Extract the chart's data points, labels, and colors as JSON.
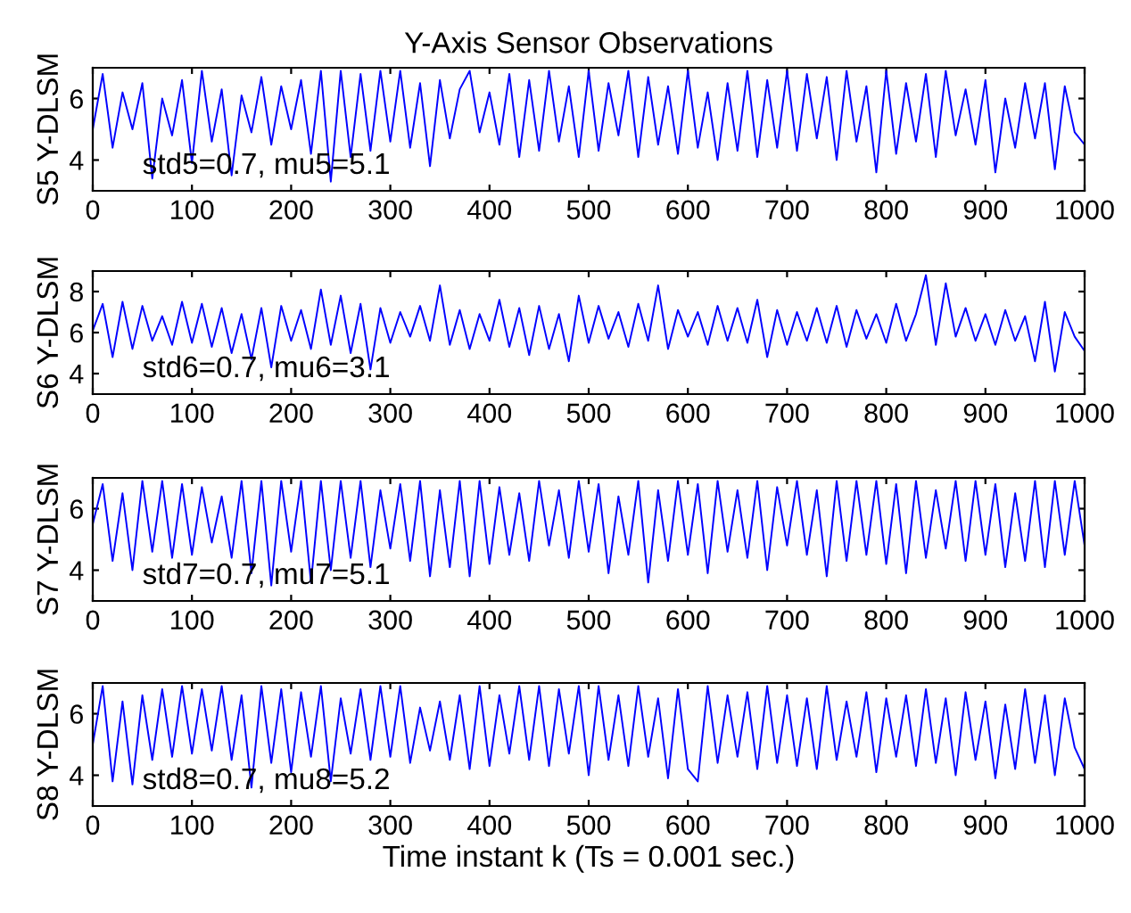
{
  "chart_data": [
    {
      "type": "line",
      "title": "Y-Axis Sensor Observations",
      "ylabel": "S5 Y-DLSM",
      "annotations": [
        "std5=0.7, mu5=5.1"
      ],
      "xlim": [
        0,
        1000
      ],
      "xticks": [
        0,
        100,
        200,
        300,
        400,
        500,
        600,
        700,
        800,
        900,
        1000
      ],
      "ylim": [
        3,
        7
      ],
      "yticks": [
        4,
        6
      ],
      "grid": false,
      "legend": false,
      "x": [
        0,
        10,
        20,
        30,
        40,
        50,
        60,
        70,
        80,
        90,
        100,
        110,
        120,
        130,
        140,
        150,
        160,
        170,
        180,
        190,
        200,
        210,
        220,
        230,
        240,
        250,
        260,
        270,
        280,
        290,
        300,
        310,
        320,
        330,
        340,
        350,
        360,
        370,
        380,
        390,
        400,
        410,
        420,
        430,
        440,
        450,
        460,
        470,
        480,
        490,
        500,
        510,
        520,
        530,
        540,
        550,
        560,
        570,
        580,
        590,
        600,
        610,
        620,
        630,
        640,
        650,
        660,
        670,
        680,
        690,
        700,
        710,
        720,
        730,
        740,
        750,
        760,
        770,
        780,
        790,
        800,
        810,
        820,
        830,
        840,
        850,
        860,
        870,
        880,
        890,
        900,
        910,
        920,
        930,
        940,
        950,
        960,
        970,
        980,
        990,
        1000
      ],
      "series": [
        {
          "color": "#0000ff",
          "values": [
            5.0,
            6.8,
            4.4,
            6.2,
            5.0,
            6.5,
            3.4,
            6.0,
            4.8,
            6.6,
            3.9,
            6.9,
            4.6,
            6.3,
            3.5,
            6.1,
            4.9,
            6.7,
            4.5,
            6.4,
            5.0,
            6.6,
            4.2,
            6.9,
            3.3,
            6.9,
            4.1,
            6.8,
            4.3,
            6.9,
            4.6,
            6.9,
            4.4,
            6.5,
            3.8,
            6.6,
            4.7,
            6.3,
            6.9,
            4.9,
            6.2,
            4.5,
            6.8,
            4.1,
            6.6,
            4.3,
            6.9,
            4.6,
            6.4,
            4.1,
            6.9,
            4.3,
            6.5,
            4.8,
            6.9,
            4.1,
            6.7,
            4.5,
            6.4,
            4.2,
            6.9,
            4.4,
            6.2,
            4.0,
            6.5,
            4.3,
            6.9,
            4.1,
            6.6,
            4.4,
            6.9,
            4.3,
            6.8,
            4.7,
            6.7,
            4.0,
            6.9,
            4.6,
            6.4,
            3.6,
            6.9,
            4.2,
            6.5,
            4.6,
            6.8,
            4.1,
            6.9,
            4.8,
            6.3,
            4.5,
            6.6,
            3.6,
            6.0,
            4.4,
            6.5,
            4.7,
            6.5,
            3.7,
            6.4,
            4.9,
            4.5
          ]
        }
      ]
    },
    {
      "type": "line",
      "ylabel": "S6 Y-DLSM",
      "annotations": [
        "std6=0.7, mu6=3.1"
      ],
      "xlim": [
        0,
        1000
      ],
      "xticks": [
        0,
        100,
        200,
        300,
        400,
        500,
        600,
        700,
        800,
        900,
        1000
      ],
      "ylim": [
        3,
        9
      ],
      "yticks": [
        4,
        6,
        8
      ],
      "grid": false,
      "legend": false,
      "x": [
        0,
        10,
        20,
        30,
        40,
        50,
        60,
        70,
        80,
        90,
        100,
        110,
        120,
        130,
        140,
        150,
        160,
        170,
        180,
        190,
        200,
        210,
        220,
        230,
        240,
        250,
        260,
        270,
        280,
        290,
        300,
        310,
        320,
        330,
        340,
        350,
        360,
        370,
        380,
        390,
        400,
        410,
        420,
        430,
        440,
        450,
        460,
        470,
        480,
        490,
        500,
        510,
        520,
        530,
        540,
        550,
        560,
        570,
        580,
        590,
        600,
        610,
        620,
        630,
        640,
        650,
        660,
        670,
        680,
        690,
        700,
        710,
        720,
        730,
        740,
        750,
        760,
        770,
        780,
        790,
        800,
        810,
        820,
        830,
        840,
        850,
        860,
        870,
        880,
        890,
        900,
        910,
        920,
        930,
        940,
        950,
        960,
        970,
        980,
        990,
        1000
      ],
      "series": [
        {
          "color": "#0000ff",
          "values": [
            6.1,
            7.4,
            4.8,
            7.5,
            5.2,
            7.3,
            5.6,
            6.8,
            5.4,
            7.5,
            5.5,
            7.4,
            5.3,
            7.2,
            5.0,
            6.9,
            4.7,
            7.2,
            4.3,
            7.3,
            5.6,
            7.1,
            5.2,
            8.1,
            5.4,
            7.8,
            5.0,
            7.4,
            4.2,
            7.2,
            5.5,
            7.0,
            5.8,
            7.3,
            5.6,
            8.3,
            5.4,
            7.1,
            5.2,
            6.9,
            5.6,
            7.6,
            5.3,
            7.2,
            4.9,
            7.3,
            5.2,
            6.9,
            4.6,
            7.8,
            5.5,
            7.3,
            5.7,
            7.0,
            5.3,
            7.4,
            5.6,
            8.3,
            5.2,
            7.1,
            5.8,
            7.0,
            5.4,
            7.3,
            5.6,
            7.2,
            5.5,
            7.6,
            4.8,
            7.1,
            5.4,
            7.0,
            5.6,
            7.2,
            5.5,
            7.3,
            5.3,
            7.1,
            5.7,
            6.9,
            5.5,
            7.4,
            5.6,
            6.9,
            8.8,
            5.4,
            8.4,
            5.8,
            7.2,
            5.6,
            6.9,
            5.4,
            7.1,
            5.6,
            6.8,
            4.6,
            7.5,
            4.1,
            7.0,
            5.8,
            5.1
          ]
        }
      ]
    },
    {
      "type": "line",
      "ylabel": "S7 Y-DLSM",
      "annotations": [
        "std7=0.7, mu7=5.1"
      ],
      "xlim": [
        0,
        1000
      ],
      "xticks": [
        0,
        100,
        200,
        300,
        400,
        500,
        600,
        700,
        800,
        900,
        1000
      ],
      "ylim": [
        3,
        7
      ],
      "yticks": [
        4,
        6
      ],
      "grid": false,
      "legend": false,
      "x": [
        0,
        10,
        20,
        30,
        40,
        50,
        60,
        70,
        80,
        90,
        100,
        110,
        120,
        130,
        140,
        150,
        160,
        170,
        180,
        190,
        200,
        210,
        220,
        230,
        240,
        250,
        260,
        270,
        280,
        290,
        300,
        310,
        320,
        330,
        340,
        350,
        360,
        370,
        380,
        390,
        400,
        410,
        420,
        430,
        440,
        450,
        460,
        470,
        480,
        490,
        500,
        510,
        520,
        530,
        540,
        550,
        560,
        570,
        580,
        590,
        600,
        610,
        620,
        630,
        640,
        650,
        660,
        670,
        680,
        690,
        700,
        710,
        720,
        730,
        740,
        750,
        760,
        770,
        780,
        790,
        800,
        810,
        820,
        830,
        840,
        850,
        860,
        870,
        880,
        890,
        900,
        910,
        920,
        930,
        940,
        950,
        960,
        970,
        980,
        990,
        1000
      ],
      "series": [
        {
          "color": "#0000ff",
          "values": [
            5.5,
            6.8,
            4.3,
            6.5,
            4.0,
            6.9,
            4.6,
            6.9,
            4.4,
            6.8,
            4.5,
            6.7,
            4.9,
            6.4,
            4.4,
            6.9,
            3.9,
            6.9,
            3.5,
            6.9,
            4.6,
            6.9,
            3.6,
            6.9,
            4.0,
            6.9,
            4.4,
            6.9,
            4.1,
            6.6,
            4.7,
            6.8,
            4.3,
            6.9,
            3.8,
            6.6,
            4.1,
            6.9,
            3.8,
            6.9,
            4.2,
            6.7,
            4.5,
            6.5,
            4.3,
            6.9,
            4.8,
            6.6,
            4.4,
            6.9,
            4.6,
            6.8,
            3.9,
            6.4,
            4.5,
            6.9,
            3.6,
            6.6,
            4.3,
            6.9,
            4.5,
            6.8,
            3.9,
            6.9,
            4.6,
            6.6,
            4.4,
            6.9,
            4.0,
            6.7,
            4.8,
            6.9,
            4.5,
            6.6,
            3.8,
            6.9,
            4.3,
            6.9,
            4.5,
            6.9,
            4.2,
            6.8,
            3.9,
            6.9,
            4.4,
            6.6,
            4.7,
            6.9,
            4.3,
            6.9,
            4.5,
            6.8,
            4.1,
            6.5,
            4.3,
            6.9,
            4.1,
            6.9,
            4.5,
            6.9,
            4.8
          ]
        }
      ]
    },
    {
      "type": "line",
      "ylabel": "S8 Y-DLSM",
      "xlabel": "Time instant k (Ts = 0.001 sec.)",
      "annotations": [
        "std8=0.7, mu8=5.2"
      ],
      "xlim": [
        0,
        1000
      ],
      "xticks": [
        0,
        100,
        200,
        300,
        400,
        500,
        600,
        700,
        800,
        900,
        1000
      ],
      "ylim": [
        3,
        7
      ],
      "yticks": [
        4,
        6
      ],
      "grid": false,
      "legend": false,
      "x": [
        0,
        10,
        20,
        30,
        40,
        50,
        60,
        70,
        80,
        90,
        100,
        110,
        120,
        130,
        140,
        150,
        160,
        170,
        180,
        190,
        200,
        210,
        220,
        230,
        240,
        250,
        260,
        270,
        280,
        290,
        300,
        310,
        320,
        330,
        340,
        350,
        360,
        370,
        380,
        390,
        400,
        410,
        420,
        430,
        440,
        450,
        460,
        470,
        480,
        490,
        500,
        510,
        520,
        530,
        540,
        550,
        560,
        570,
        580,
        590,
        600,
        610,
        620,
        630,
        640,
        650,
        660,
        670,
        680,
        690,
        700,
        710,
        720,
        730,
        740,
        750,
        760,
        770,
        780,
        790,
        800,
        810,
        820,
        830,
        840,
        850,
        860,
        870,
        880,
        890,
        900,
        910,
        920,
        930,
        940,
        950,
        960,
        970,
        980,
        990,
        1000
      ],
      "series": [
        {
          "color": "#0000ff",
          "values": [
            5.0,
            6.9,
            3.8,
            6.4,
            3.7,
            6.6,
            4.5,
            6.8,
            4.6,
            6.9,
            4.7,
            6.8,
            4.8,
            6.9,
            4.5,
            6.6,
            3.6,
            6.9,
            4.4,
            6.8,
            4.1,
            6.7,
            4.6,
            6.9,
            3.8,
            6.5,
            4.7,
            6.8,
            4.5,
            6.9,
            4.6,
            6.9,
            4.4,
            6.2,
            4.8,
            6.4,
            4.5,
            6.6,
            4.2,
            6.9,
            4.3,
            6.6,
            4.7,
            6.9,
            4.5,
            6.9,
            4.3,
            6.8,
            4.7,
            6.9,
            4.0,
            6.9,
            4.5,
            6.6,
            4.3,
            6.9,
            4.6,
            6.5,
            3.9,
            6.8,
            4.2,
            3.8,
            6.9,
            4.4,
            6.6,
            4.6,
            6.7,
            4.2,
            6.9,
            4.4,
            6.6,
            4.3,
            6.5,
            4.2,
            6.9,
            4.5,
            6.4,
            4.6,
            6.7,
            4.1,
            6.5,
            4.6,
            6.6,
            4.3,
            6.8,
            4.4,
            6.5,
            4.0,
            6.7,
            4.5,
            6.4,
            3.9,
            6.3,
            4.2,
            6.8,
            4.4,
            6.6,
            4.0,
            6.5,
            4.9,
            4.2
          ]
        }
      ]
    }
  ]
}
